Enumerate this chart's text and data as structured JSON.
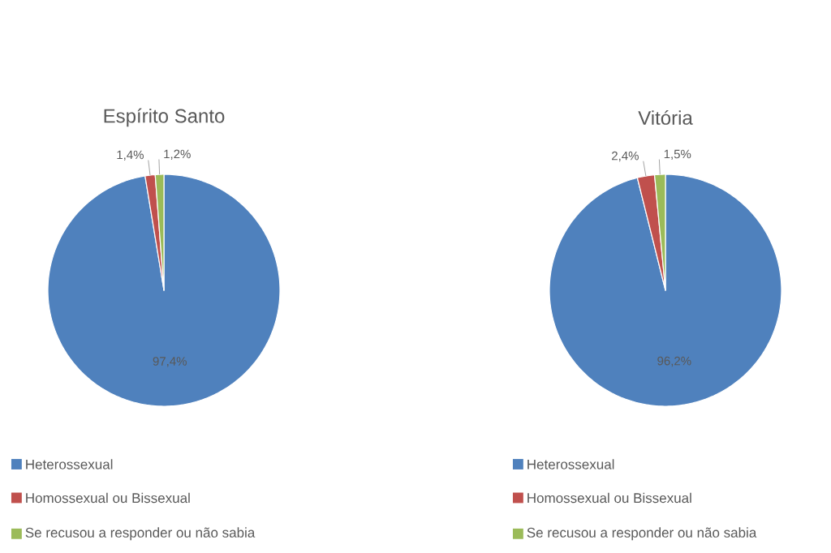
{
  "chart_data": [
    {
      "type": "pie",
      "title": "Espírito Santo",
      "categories": [
        "Heterossexual",
        "Homossexual ou Bissexual",
        "Se recusou a responder ou não sabia"
      ],
      "values": [
        97.4,
        1.4,
        1.2
      ],
      "colors": [
        "#4f81bd",
        "#c0504d",
        "#9bbb59"
      ],
      "value_labels": [
        "97,4%",
        "1,4%",
        "1,2%"
      ],
      "legend": "bottom"
    },
    {
      "type": "pie",
      "title": "Vitória",
      "categories": [
        "Heterossexual",
        "Homossexual ou Bissexual",
        "Se recusou a responder ou não sabia"
      ],
      "values": [
        96.2,
        2.4,
        1.5
      ],
      "colors": [
        "#4f81bd",
        "#c0504d",
        "#9bbb59"
      ],
      "value_labels": [
        "96,2%",
        "2,4%",
        "1,5%"
      ],
      "legend": "bottom"
    }
  ]
}
